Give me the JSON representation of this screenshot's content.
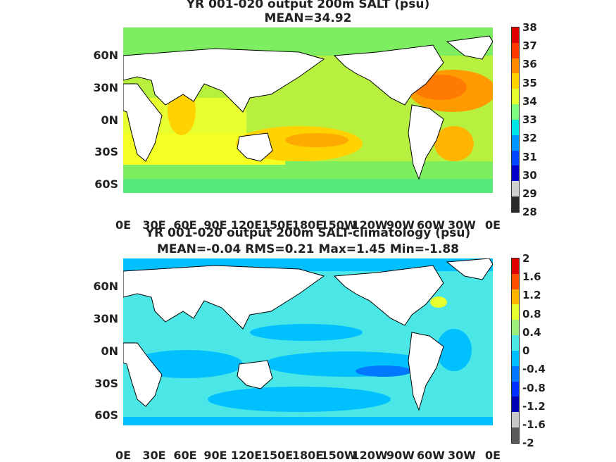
{
  "panel1": {
    "title_line1": "YR 001-020 output 200m SALT (psu)",
    "title_line2": "MEAN=34.92",
    "colorbar_labels": [
      "38",
      "37",
      "36",
      "35",
      "34",
      "33",
      "32",
      "31",
      "30",
      "29",
      "28"
    ]
  },
  "panel2": {
    "title_line1": "YR 001-020 output 200m SALT-climatology (psu)",
    "title_line2": "MEAN=-0.04   RMS=0.21   Max=1.45   Min=-1.88",
    "colorbar_labels": [
      "2",
      "1.6",
      "1.2",
      "0.8",
      "0.4",
      "0",
      "-0.4",
      "-0.8",
      "-1.2",
      "-1.6",
      "-2"
    ]
  },
  "y_ticks": [
    "60N",
    "30N",
    "0N",
    "30S",
    "60S"
  ],
  "x_ticks": [
    "0E",
    "30E",
    "60E",
    "90E",
    "120E",
    "150E",
    "180E",
    "150W",
    "120W",
    "90W",
    "60W",
    "30W",
    "0E"
  ],
  "colors": {
    "panel1_scale": [
      "#2a2a2a",
      "#cfcfcf",
      "#0000c8",
      "#0046ff",
      "#0096ff",
      "#00e6e6",
      "#7dff7d",
      "#e6ff2e",
      "#ffd200",
      "#ff8a00",
      "#ff3a00",
      "#e00000"
    ],
    "panel2_scale": [
      "#595959",
      "#c8c8c8",
      "#0000b4",
      "#0030ff",
      "#0078ff",
      "#00c0ff",
      "#4be6e6",
      "#9cf07a",
      "#e6ff2e",
      "#ffb400",
      "#ff5000",
      "#e00000"
    ],
    "land": "#ffffff"
  }
}
